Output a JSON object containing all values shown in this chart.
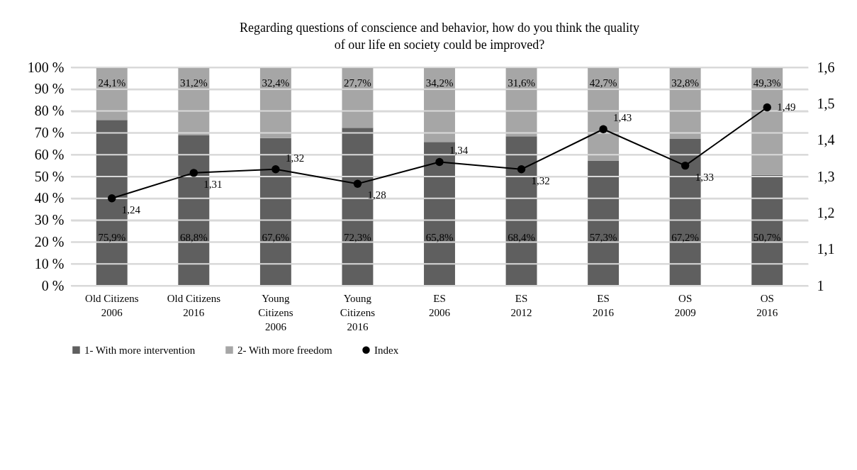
{
  "chart_data": {
    "type": "bar",
    "stacked": true,
    "title": [
      "Regarding questions of conscience and behavior, how do you think the quality",
      "of our life en society could be improved?"
    ],
    "categories": [
      "Old Citizens\n2006",
      "Old Citizens\n2016",
      "Young\nCitizens\n2006",
      "Young\nCitizens\n2016",
      "ES\n2006",
      "ES\n2012",
      "ES\n2016",
      "OS\n2009",
      "OS\n2016"
    ],
    "series": [
      {
        "name": "1- With more intervention",
        "color": "#5f5f5f",
        "values": [
          75.9,
          68.8,
          67.6,
          72.3,
          65.8,
          68.4,
          57.3,
          67.2,
          50.7
        ],
        "value_labels": [
          "75,9%",
          "68,8%",
          "67,6%",
          "72,3%",
          "65,8%",
          "68,4%",
          "57,3%",
          "67,2%",
          "50,7%"
        ]
      },
      {
        "name": "2- With more freedom",
        "color": "#a6a6a6",
        "values": [
          24.1,
          31.2,
          32.4,
          27.7,
          34.2,
          31.6,
          42.7,
          32.8,
          49.3
        ],
        "value_labels": [
          "24,1%",
          "31,2%",
          "32,4%",
          "27,7%",
          "34,2%",
          "31,6%",
          "42,7%",
          "32,8%",
          "49,3%"
        ]
      },
      {
        "name": "Index",
        "type": "line",
        "axis": "y2",
        "color": "#000000",
        "marker": "circle",
        "values": [
          1.24,
          1.31,
          1.32,
          1.28,
          1.34,
          1.32,
          1.43,
          1.33,
          1.49
        ],
        "value_labels": [
          "1,24",
          "1,31",
          "1,32",
          "1,28",
          "1,34",
          "1,32",
          "1,43",
          "1,33",
          "1,49"
        ]
      }
    ],
    "ylim": [
      0,
      100
    ],
    "yticks": [
      {
        "value": 0,
        "label": "0 %"
      },
      {
        "value": 10,
        "label": "10 %"
      },
      {
        "value": 20,
        "label": "20 %"
      },
      {
        "value": 30,
        "label": "30 %"
      },
      {
        "value": 40,
        "label": "40 %"
      },
      {
        "value": 50,
        "label": "50 %"
      },
      {
        "value": 60,
        "label": "60 %"
      },
      {
        "value": 70,
        "label": "70 %"
      },
      {
        "value": 80,
        "label": "80 %"
      },
      {
        "value": 90,
        "label": "90 %"
      },
      {
        "value": 100,
        "label": "100 %"
      }
    ],
    "y2lim": [
      1,
      1.6
    ],
    "y2ticks": [
      1,
      {
        "value": 1.1,
        "label": "1,1"
      },
      {
        "value": 1.2,
        "label": "1,2"
      },
      {
        "value": 1.3,
        "label": "1,3"
      },
      {
        "value": 1.4,
        "label": "1,4"
      },
      {
        "value": 1.5,
        "label": "1,5"
      },
      {
        "value": 1.6,
        "label": "1,6"
      }
    ],
    "grid": "y",
    "legend": "bottom"
  }
}
